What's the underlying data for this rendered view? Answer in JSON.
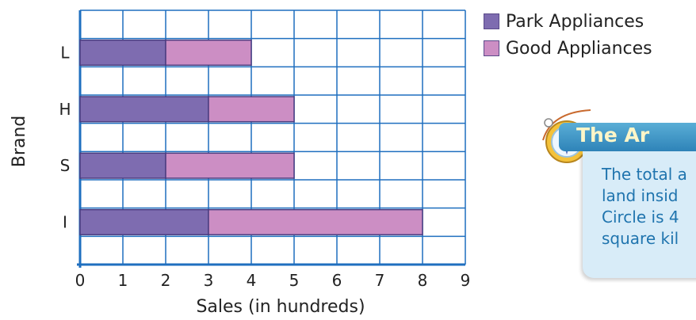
{
  "chart_data": {
    "type": "bar",
    "orientation": "horizontal",
    "stacked": true,
    "categories": [
      "L",
      "H",
      "S",
      "I"
    ],
    "series": [
      {
        "name": "Park Appliances",
        "values": [
          2,
          3,
          2,
          3
        ]
      },
      {
        "name": "Good Appliances",
        "values": [
          2,
          2,
          3,
          5
        ]
      }
    ],
    "xlabel": "Sales (in hundreds)",
    "ylabel": "Brand",
    "xlim": [
      0,
      9
    ],
    "xticks": [
      0,
      1,
      2,
      3,
      4,
      5,
      6,
      7,
      8,
      9
    ],
    "grid": true,
    "legend_position": "top-right"
  },
  "colors": {
    "park": "#7e6cb0",
    "good": "#cc8ec4",
    "grid": "#1f6fbf",
    "bar_border": "#4b3d80"
  },
  "callout": {
    "title": "The Ar",
    "lines": [
      "The total a",
      "land insid",
      "Circle is 4",
      "square kil"
    ],
    "icon": "compass-icon"
  }
}
